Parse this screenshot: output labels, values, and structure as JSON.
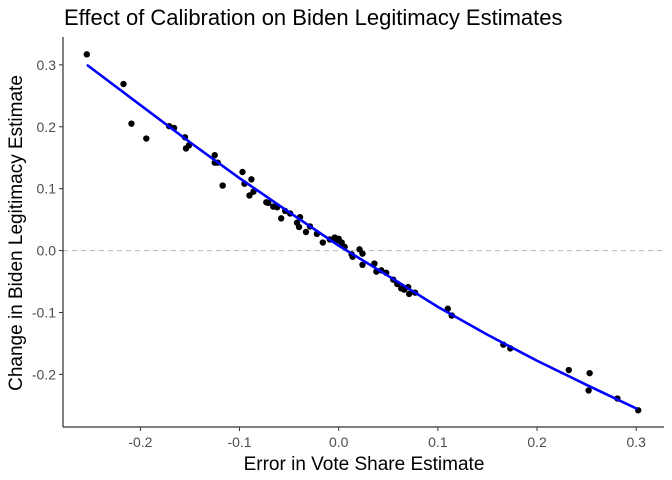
{
  "chart_data": {
    "type": "scatter",
    "title": "Effect of Calibration on Biden Legitimacy Estimates",
    "xlabel": "Error in Vote Share Estimate",
    "ylabel": "Change in Biden Legitimacy Estimate",
    "xlim": [
      -0.278,
      0.328
    ],
    "ylim": [
      -0.285,
      0.345
    ],
    "x_ticks": [
      -0.2,
      -0.1,
      0.0,
      0.1,
      0.2,
      0.3
    ],
    "x_tick_labels": [
      "-0.2",
      "-0.1",
      "0.0",
      "0.1",
      "0.2",
      "0.3"
    ],
    "y_ticks": [
      -0.2,
      -0.1,
      0.0,
      0.1,
      0.2,
      0.3
    ],
    "y_tick_labels": [
      "-0.2",
      "-0.1",
      "0.0",
      "0.1",
      "0.2",
      "0.3"
    ],
    "grid": false,
    "reference_line": {
      "y": 0,
      "style": "dashed",
      "color": "#bfbfbf"
    },
    "point_color": "#000000",
    "fit_line_color": "#0000ff",
    "fit_line": {
      "x": [
        -0.253,
        -0.2,
        -0.15,
        -0.1,
        -0.05,
        0.0,
        0.05,
        0.1,
        0.15,
        0.2,
        0.25,
        0.3
      ],
      "y": [
        0.299,
        0.235,
        0.175,
        0.117,
        0.062,
        0.008,
        -0.041,
        -0.091,
        -0.136,
        -0.178,
        -0.217,
        -0.255
      ]
    },
    "points": [
      {
        "x": -0.254,
        "y": 0.317
      },
      {
        "x": -0.217,
        "y": 0.269
      },
      {
        "x": -0.209,
        "y": 0.205
      },
      {
        "x": -0.194,
        "y": 0.181
      },
      {
        "x": -0.171,
        "y": 0.201
      },
      {
        "x": -0.166,
        "y": 0.198
      },
      {
        "x": -0.155,
        "y": 0.183
      },
      {
        "x": -0.154,
        "y": 0.165
      },
      {
        "x": -0.151,
        "y": 0.17
      },
      {
        "x": -0.125,
        "y": 0.154
      },
      {
        "x": -0.125,
        "y": 0.142
      },
      {
        "x": -0.122,
        "y": 0.142
      },
      {
        "x": -0.117,
        "y": 0.105
      },
      {
        "x": -0.097,
        "y": 0.127
      },
      {
        "x": -0.095,
        "y": 0.108
      },
      {
        "x": -0.09,
        "y": 0.089
      },
      {
        "x": -0.088,
        "y": 0.115
      },
      {
        "x": -0.086,
        "y": 0.095
      },
      {
        "x": -0.073,
        "y": 0.078
      },
      {
        "x": -0.071,
        "y": 0.077
      },
      {
        "x": -0.066,
        "y": 0.071
      },
      {
        "x": -0.062,
        "y": 0.07
      },
      {
        "x": -0.058,
        "y": 0.052
      },
      {
        "x": -0.054,
        "y": 0.064
      },
      {
        "x": -0.049,
        "y": 0.06
      },
      {
        "x": -0.042,
        "y": 0.045
      },
      {
        "x": -0.04,
        "y": 0.038
      },
      {
        "x": -0.039,
        "y": 0.054
      },
      {
        "x": -0.033,
        "y": 0.03
      },
      {
        "x": -0.029,
        "y": 0.039
      },
      {
        "x": -0.022,
        "y": 0.027
      },
      {
        "x": -0.016,
        "y": 0.013
      },
      {
        "x": -0.009,
        "y": 0.018
      },
      {
        "x": -0.004,
        "y": 0.021
      },
      {
        "x": -0.002,
        "y": 0.016
      },
      {
        "x": 0.0,
        "y": 0.019
      },
      {
        "x": 0.003,
        "y": 0.013
      },
      {
        "x": 0.006,
        "y": 0.006
      },
      {
        "x": 0.013,
        "y": -0.006
      },
      {
        "x": 0.014,
        "y": -0.01
      },
      {
        "x": 0.021,
        "y": 0.002
      },
      {
        "x": 0.024,
        "y": -0.005
      },
      {
        "x": 0.024,
        "y": -0.023
      },
      {
        "x": 0.036,
        "y": -0.021
      },
      {
        "x": 0.038,
        "y": -0.034
      },
      {
        "x": 0.043,
        "y": -0.032
      },
      {
        "x": 0.048,
        "y": -0.036
      },
      {
        "x": 0.055,
        "y": -0.047
      },
      {
        "x": 0.059,
        "y": -0.054
      },
      {
        "x": 0.063,
        "y": -0.061
      },
      {
        "x": 0.066,
        "y": -0.063
      },
      {
        "x": 0.07,
        "y": -0.059
      },
      {
        "x": 0.071,
        "y": -0.07
      },
      {
        "x": 0.077,
        "y": -0.068
      },
      {
        "x": 0.11,
        "y": -0.094
      },
      {
        "x": 0.114,
        "y": -0.105
      },
      {
        "x": 0.166,
        "y": -0.152
      },
      {
        "x": 0.173,
        "y": -0.158
      },
      {
        "x": 0.232,
        "y": -0.193
      },
      {
        "x": 0.252,
        "y": -0.226
      },
      {
        "x": 0.253,
        "y": -0.198
      },
      {
        "x": 0.281,
        "y": -0.239
      },
      {
        "x": 0.302,
        "y": -0.258
      }
    ]
  }
}
